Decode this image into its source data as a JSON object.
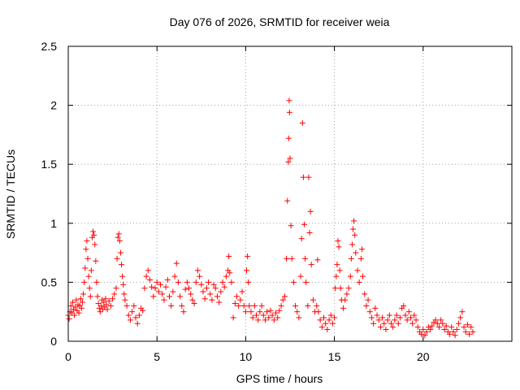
{
  "chart_data": {
    "type": "scatter",
    "title": "Day 076 of 2026, SRMTID for receiver weia",
    "xlabel": "GPS time / hours",
    "ylabel": "SRMTID / TECUs",
    "xlim": [
      0,
      25
    ],
    "ylim": [
      0,
      2.5
    ],
    "xticks": [
      0,
      5,
      10,
      15,
      20
    ],
    "xtick_labels": [
      "0",
      "5",
      "10",
      "15",
      "20"
    ],
    "yticks": [
      0,
      0.5,
      1,
      1.5,
      2,
      2.5
    ],
    "ytick_labels": [
      "0",
      "0.5",
      "1",
      "1.5",
      "2",
      "2.5"
    ],
    "grid": true,
    "marker": "+",
    "series_color": "#ff0000",
    "series": [
      {
        "name": "SRMTID",
        "points": [
          [
            0.0,
            0.22
          ],
          [
            0.05,
            0.19
          ],
          [
            0.1,
            0.25
          ],
          [
            0.15,
            0.3
          ],
          [
            0.2,
            0.24
          ],
          [
            0.25,
            0.33
          ],
          [
            0.3,
            0.27
          ],
          [
            0.35,
            0.22
          ],
          [
            0.4,
            0.29
          ],
          [
            0.45,
            0.35
          ],
          [
            0.5,
            0.26
          ],
          [
            0.55,
            0.31
          ],
          [
            0.6,
            0.24
          ],
          [
            0.65,
            0.3
          ],
          [
            0.7,
            0.36
          ],
          [
            0.75,
            0.28
          ],
          [
            0.8,
            0.33
          ],
          [
            0.85,
            0.4
          ],
          [
            0.9,
            0.5
          ],
          [
            0.95,
            0.62
          ],
          [
            1.0,
            0.78
          ],
          [
            1.05,
            0.85
          ],
          [
            1.1,
            0.7
          ],
          [
            1.15,
            0.55
          ],
          [
            1.2,
            0.45
          ],
          [
            1.25,
            0.38
          ],
          [
            1.3,
            0.6
          ],
          [
            1.35,
            0.88
          ],
          [
            1.4,
            0.93
          ],
          [
            1.45,
            0.9
          ],
          [
            1.5,
            0.82
          ],
          [
            1.55,
            0.68
          ],
          [
            1.6,
            0.5
          ],
          [
            1.65,
            0.38
          ],
          [
            1.7,
            0.32
          ],
          [
            1.75,
            0.28
          ],
          [
            1.8,
            0.25
          ],
          [
            1.85,
            0.3
          ],
          [
            1.9,
            0.35
          ],
          [
            1.95,
            0.27
          ],
          [
            2.0,
            0.33
          ],
          [
            2.05,
            0.29
          ],
          [
            2.1,
            0.36
          ],
          [
            2.15,
            0.31
          ],
          [
            2.2,
            0.27
          ],
          [
            2.3,
            0.34
          ],
          [
            2.4,
            0.3
          ],
          [
            2.5,
            0.36
          ],
          [
            2.6,
            0.4
          ],
          [
            2.7,
            0.45
          ],
          [
            2.75,
            0.7
          ],
          [
            2.8,
            0.88
          ],
          [
            2.85,
            0.91
          ],
          [
            2.9,
            0.85
          ],
          [
            2.95,
            0.75
          ],
          [
            3.0,
            0.65
          ],
          [
            3.05,
            0.55
          ],
          [
            3.1,
            0.48
          ],
          [
            3.15,
            0.4
          ],
          [
            3.2,
            0.35
          ],
          [
            3.3,
            0.3
          ],
          [
            3.4,
            0.22
          ],
          [
            3.5,
            0.18
          ],
          [
            3.6,
            0.25
          ],
          [
            3.7,
            0.3
          ],
          [
            3.8,
            0.2
          ],
          [
            3.9,
            0.15
          ],
          [
            4.0,
            0.22
          ],
          [
            4.1,
            0.28
          ],
          [
            4.2,
            0.26
          ],
          [
            4.3,
            0.45
          ],
          [
            4.4,
            0.55
          ],
          [
            4.5,
            0.6
          ],
          [
            4.6,
            0.52
          ],
          [
            4.7,
            0.46
          ],
          [
            4.8,
            0.38
          ],
          [
            4.9,
            0.45
          ],
          [
            5.0,
            0.5
          ],
          [
            5.1,
            0.42
          ],
          [
            5.2,
            0.48
          ],
          [
            5.3,
            0.4
          ],
          [
            5.4,
            0.35
          ],
          [
            5.5,
            0.46
          ],
          [
            5.6,
            0.52
          ],
          [
            5.7,
            0.38
          ],
          [
            5.8,
            0.3
          ],
          [
            5.9,
            0.42
          ],
          [
            6.0,
            0.55
          ],
          [
            6.1,
            0.66
          ],
          [
            6.2,
            0.5
          ],
          [
            6.3,
            0.38
          ],
          [
            6.4,
            0.3
          ],
          [
            6.5,
            0.25
          ],
          [
            6.6,
            0.44
          ],
          [
            6.7,
            0.5
          ],
          [
            6.8,
            0.45
          ],
          [
            6.9,
            0.4
          ],
          [
            7.0,
            0.35
          ],
          [
            7.1,
            0.32
          ],
          [
            7.2,
            0.5
          ],
          [
            7.3,
            0.6
          ],
          [
            7.4,
            0.55
          ],
          [
            7.5,
            0.48
          ],
          [
            7.6,
            0.42
          ],
          [
            7.7,
            0.36
          ],
          [
            7.8,
            0.45
          ],
          [
            7.9,
            0.5
          ],
          [
            8.0,
            0.4
          ],
          [
            8.1,
            0.35
          ],
          [
            8.2,
            0.48
          ],
          [
            8.3,
            0.45
          ],
          [
            8.4,
            0.38
          ],
          [
            8.5,
            0.33
          ],
          [
            8.6,
            0.42
          ],
          [
            8.7,
            0.5
          ],
          [
            8.8,
            0.46
          ],
          [
            8.9,
            0.55
          ],
          [
            9.0,
            0.6
          ],
          [
            9.05,
            0.72
          ],
          [
            9.1,
            0.58
          ],
          [
            9.2,
            0.5
          ],
          [
            9.3,
            0.2
          ],
          [
            9.4,
            0.32
          ],
          [
            9.5,
            0.38
          ],
          [
            9.6,
            0.3
          ],
          [
            9.7,
            0.35
          ],
          [
            9.8,
            0.42
          ],
          [
            9.9,
            0.3
          ],
          [
            10.0,
            0.25
          ],
          [
            10.05,
            0.6
          ],
          [
            10.1,
            0.72
          ],
          [
            10.15,
            0.5
          ],
          [
            10.2,
            0.3
          ],
          [
            10.3,
            0.25
          ],
          [
            10.4,
            0.2
          ],
          [
            10.5,
            0.3
          ],
          [
            10.6,
            0.22
          ],
          [
            10.7,
            0.18
          ],
          [
            10.8,
            0.25
          ],
          [
            10.9,
            0.3
          ],
          [
            11.0,
            0.22
          ],
          [
            11.1,
            0.18
          ],
          [
            11.2,
            0.25
          ],
          [
            11.3,
            0.2
          ],
          [
            11.4,
            0.26
          ],
          [
            11.5,
            0.22
          ],
          [
            11.6,
            0.18
          ],
          [
            11.7,
            0.24
          ],
          [
            11.8,
            0.2
          ],
          [
            11.9,
            0.26
          ],
          [
            12.0,
            0.3
          ],
          [
            12.1,
            0.35
          ],
          [
            12.2,
            0.38
          ],
          [
            12.3,
            0.7
          ],
          [
            12.35,
            1.19
          ],
          [
            12.4,
            1.52
          ],
          [
            12.42,
            1.72
          ],
          [
            12.45,
            2.04
          ],
          [
            12.47,
            1.94
          ],
          [
            12.5,
            1.55
          ],
          [
            12.55,
            0.98
          ],
          [
            12.6,
            0.7
          ],
          [
            12.7,
            0.5
          ],
          [
            12.8,
            0.3
          ],
          [
            12.9,
            0.25
          ],
          [
            13.0,
            0.2
          ],
          [
            13.1,
            0.55
          ],
          [
            13.15,
            0.87
          ],
          [
            13.2,
            1.85
          ],
          [
            13.25,
            1.39
          ],
          [
            13.3,
            0.99
          ],
          [
            13.35,
            0.7
          ],
          [
            13.4,
            0.5
          ],
          [
            13.5,
            0.3
          ],
          [
            13.55,
            1.39
          ],
          [
            13.6,
            0.92
          ],
          [
            13.65,
            1.1
          ],
          [
            13.7,
            0.65
          ],
          [
            13.8,
            0.35
          ],
          [
            13.9,
            0.25
          ],
          [
            14.0,
            0.3
          ],
          [
            14.05,
            0.69
          ],
          [
            14.1,
            0.25
          ],
          [
            14.2,
            0.18
          ],
          [
            14.3,
            0.12
          ],
          [
            14.4,
            0.2
          ],
          [
            14.5,
            0.15
          ],
          [
            14.6,
            0.1
          ],
          [
            14.7,
            0.18
          ],
          [
            14.8,
            0.22
          ],
          [
            14.9,
            0.15
          ],
          [
            15.0,
            0.2
          ],
          [
            15.05,
            0.45
          ],
          [
            15.1,
            0.55
          ],
          [
            15.15,
            0.65
          ],
          [
            15.2,
            0.85
          ],
          [
            15.25,
            0.8
          ],
          [
            15.3,
            0.6
          ],
          [
            15.35,
            0.45
          ],
          [
            15.4,
            0.35
          ],
          [
            15.5,
            0.28
          ],
          [
            15.6,
            0.35
          ],
          [
            15.7,
            0.4
          ],
          [
            15.8,
            0.45
          ],
          [
            15.9,
            0.55
          ],
          [
            15.95,
            0.7
          ],
          [
            16.0,
            0.82
          ],
          [
            16.05,
            0.95
          ],
          [
            16.1,
            1.02
          ],
          [
            16.15,
            0.9
          ],
          [
            16.2,
            0.75
          ],
          [
            16.3,
            0.6
          ],
          [
            16.4,
            0.5
          ],
          [
            16.5,
            0.7
          ],
          [
            16.55,
            0.78
          ],
          [
            16.6,
            0.55
          ],
          [
            16.7,
            0.4
          ],
          [
            16.8,
            0.3
          ],
          [
            16.9,
            0.35
          ],
          [
            17.0,
            0.25
          ],
          [
            17.1,
            0.2
          ],
          [
            17.2,
            0.15
          ],
          [
            17.3,
            0.28
          ],
          [
            17.4,
            0.22
          ],
          [
            17.5,
            0.18
          ],
          [
            17.6,
            0.12
          ],
          [
            17.7,
            0.2
          ],
          [
            17.8,
            0.15
          ],
          [
            17.9,
            0.1
          ],
          [
            18.0,
            0.18
          ],
          [
            18.1,
            0.22
          ],
          [
            18.2,
            0.15
          ],
          [
            18.3,
            0.12
          ],
          [
            18.4,
            0.18
          ],
          [
            18.5,
            0.22
          ],
          [
            18.6,
            0.15
          ],
          [
            18.7,
            0.2
          ],
          [
            18.8,
            0.28
          ],
          [
            18.9,
            0.3
          ],
          [
            19.0,
            0.22
          ],
          [
            19.1,
            0.18
          ],
          [
            19.2,
            0.25
          ],
          [
            19.3,
            0.2
          ],
          [
            19.4,
            0.15
          ],
          [
            19.5,
            0.22
          ],
          [
            19.6,
            0.18
          ],
          [
            19.7,
            0.12
          ],
          [
            19.8,
            0.08
          ],
          [
            19.9,
            0.06
          ],
          [
            20.0,
            0.1
          ],
          [
            20.1,
            0.05
          ],
          [
            20.2,
            0.08
          ],
          [
            20.3,
            0.12
          ],
          [
            20.4,
            0.1
          ],
          [
            20.5,
            0.13
          ],
          [
            20.6,
            0.16
          ],
          [
            20.7,
            0.18
          ],
          [
            20.8,
            0.15
          ],
          [
            20.9,
            0.12
          ],
          [
            21.0,
            0.18
          ],
          [
            21.1,
            0.15
          ],
          [
            21.2,
            0.1
          ],
          [
            21.3,
            0.13
          ],
          [
            21.4,
            0.08
          ],
          [
            21.5,
            0.06
          ],
          [
            21.6,
            0.12
          ],
          [
            21.7,
            0.08
          ],
          [
            21.8,
            0.05
          ],
          [
            21.9,
            0.1
          ],
          [
            22.0,
            0.15
          ],
          [
            22.1,
            0.2
          ],
          [
            22.2,
            0.25
          ],
          [
            22.3,
            0.12
          ],
          [
            22.4,
            0.08
          ],
          [
            22.5,
            0.14
          ],
          [
            22.6,
            0.06
          ],
          [
            22.7,
            0.12
          ],
          [
            22.8,
            0.08
          ]
        ]
      }
    ]
  }
}
